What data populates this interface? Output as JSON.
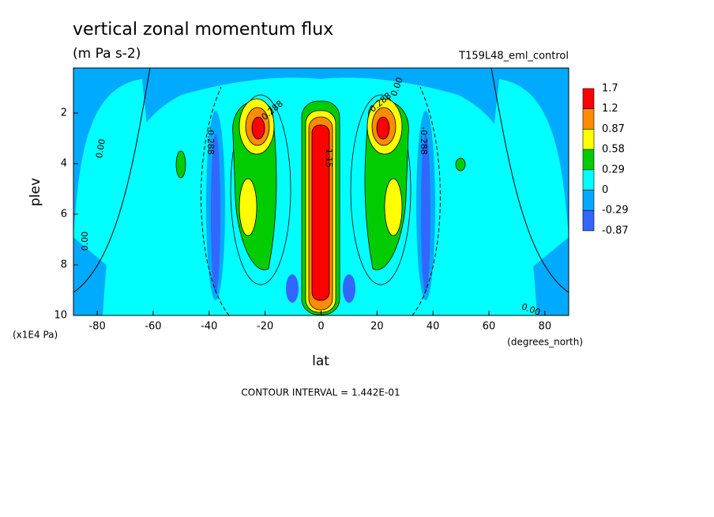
{
  "chart_data": {
    "type": "contour",
    "title": "vertical zonal momentum flux",
    "subtitle": "(m Pa s-2)",
    "dataset": "T159L48_eml_control",
    "x_label": "lat",
    "x_units": "(degrees_north)",
    "y_label": "plev",
    "y_units": "(x1E4 Pa)",
    "footnote": "CONTOUR INTERVAL = 1.442E-01",
    "xlim": [
      -88.5,
      88.5
    ],
    "xticks": [
      -80,
      -60,
      -40,
      -20,
      0,
      20,
      40,
      60,
      80
    ],
    "ylim": [
      10,
      0.22
    ],
    "yticks": [
      2,
      4,
      6,
      8,
      10
    ],
    "levels": [
      1.7,
      1.2,
      0.87,
      0.58,
      0.29,
      0,
      -0.29,
      -0.87
    ],
    "colors": [
      "#ff0000",
      "#ff8c00",
      "#ffff00",
      "#00cc00",
      "#00ffff",
      "#00aaff",
      "#3366ff"
    ],
    "contour_labels": [
      "0.00",
      "0.288",
      "-0.288",
      "1.15",
      "0.00",
      "0.288",
      "-0.288",
      "0.00",
      "0.00"
    ]
  }
}
